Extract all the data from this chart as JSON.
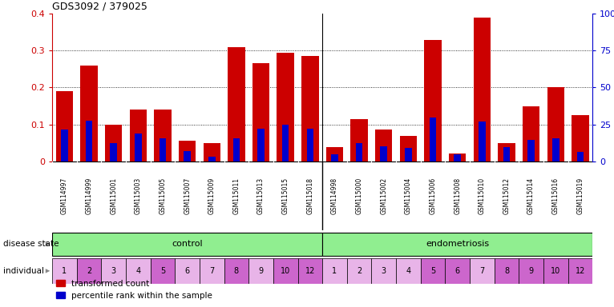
{
  "title": "GDS3092 / 379025",
  "samples": [
    "GSM114997",
    "GSM114999",
    "GSM115001",
    "GSM115003",
    "GSM115005",
    "GSM115007",
    "GSM115009",
    "GSM115011",
    "GSM115013",
    "GSM115015",
    "GSM115018",
    "GSM114998",
    "GSM115000",
    "GSM115002",
    "GSM115004",
    "GSM115006",
    "GSM115008",
    "GSM115010",
    "GSM115012",
    "GSM115014",
    "GSM115016",
    "GSM115019"
  ],
  "red_values": [
    0.19,
    0.26,
    0.1,
    0.14,
    0.14,
    0.055,
    0.048,
    0.31,
    0.265,
    0.295,
    0.285,
    0.038,
    0.115,
    0.085,
    0.068,
    0.33,
    0.02,
    0.39,
    0.048,
    0.148,
    0.2,
    0.125
  ],
  "blue_values": [
    0.085,
    0.11,
    0.048,
    0.075,
    0.062,
    0.028,
    0.012,
    0.062,
    0.088,
    0.098,
    0.088,
    0.018,
    0.048,
    0.04,
    0.035,
    0.118,
    0.018,
    0.108,
    0.038,
    0.058,
    0.062,
    0.025
  ],
  "individual_control": [
    "1",
    "2",
    "3",
    "4",
    "5",
    "6",
    "7",
    "8",
    "9",
    "10",
    "12"
  ],
  "individual_endo": [
    "1",
    "2",
    "3",
    "4",
    "5",
    "6",
    "7",
    "8",
    "9",
    "10",
    "12"
  ],
  "ylim_left": [
    0,
    0.4
  ],
  "ylim_right": [
    0,
    100
  ],
  "yticks_left": [
    0,
    0.1,
    0.2,
    0.3,
    0.4
  ],
  "yticks_right": [
    0,
    25,
    50,
    75,
    100
  ],
  "ytick_labels_left": [
    "0",
    "0.1",
    "0.2",
    "0.3",
    "0.4"
  ],
  "ytick_labels_right": [
    "0",
    "25",
    "50",
    "75",
    "100%"
  ],
  "red_color": "#CC0000",
  "blue_color": "#0000CC",
  "control_color": "#90EE90",
  "endo_color": "#90EE90",
  "tick_bg_color": "#C8C8C8",
  "bar_width": 0.7,
  "individual_colors": [
    "#E8B8E8",
    "#CC66CC",
    "#E8B8E8",
    "#CC66CC",
    "#CC66CC",
    "#CC66CC",
    "#E8B8E8",
    "#CC66CC",
    "#E8B8E8",
    "#CC66CC",
    "#CC66CC"
  ]
}
